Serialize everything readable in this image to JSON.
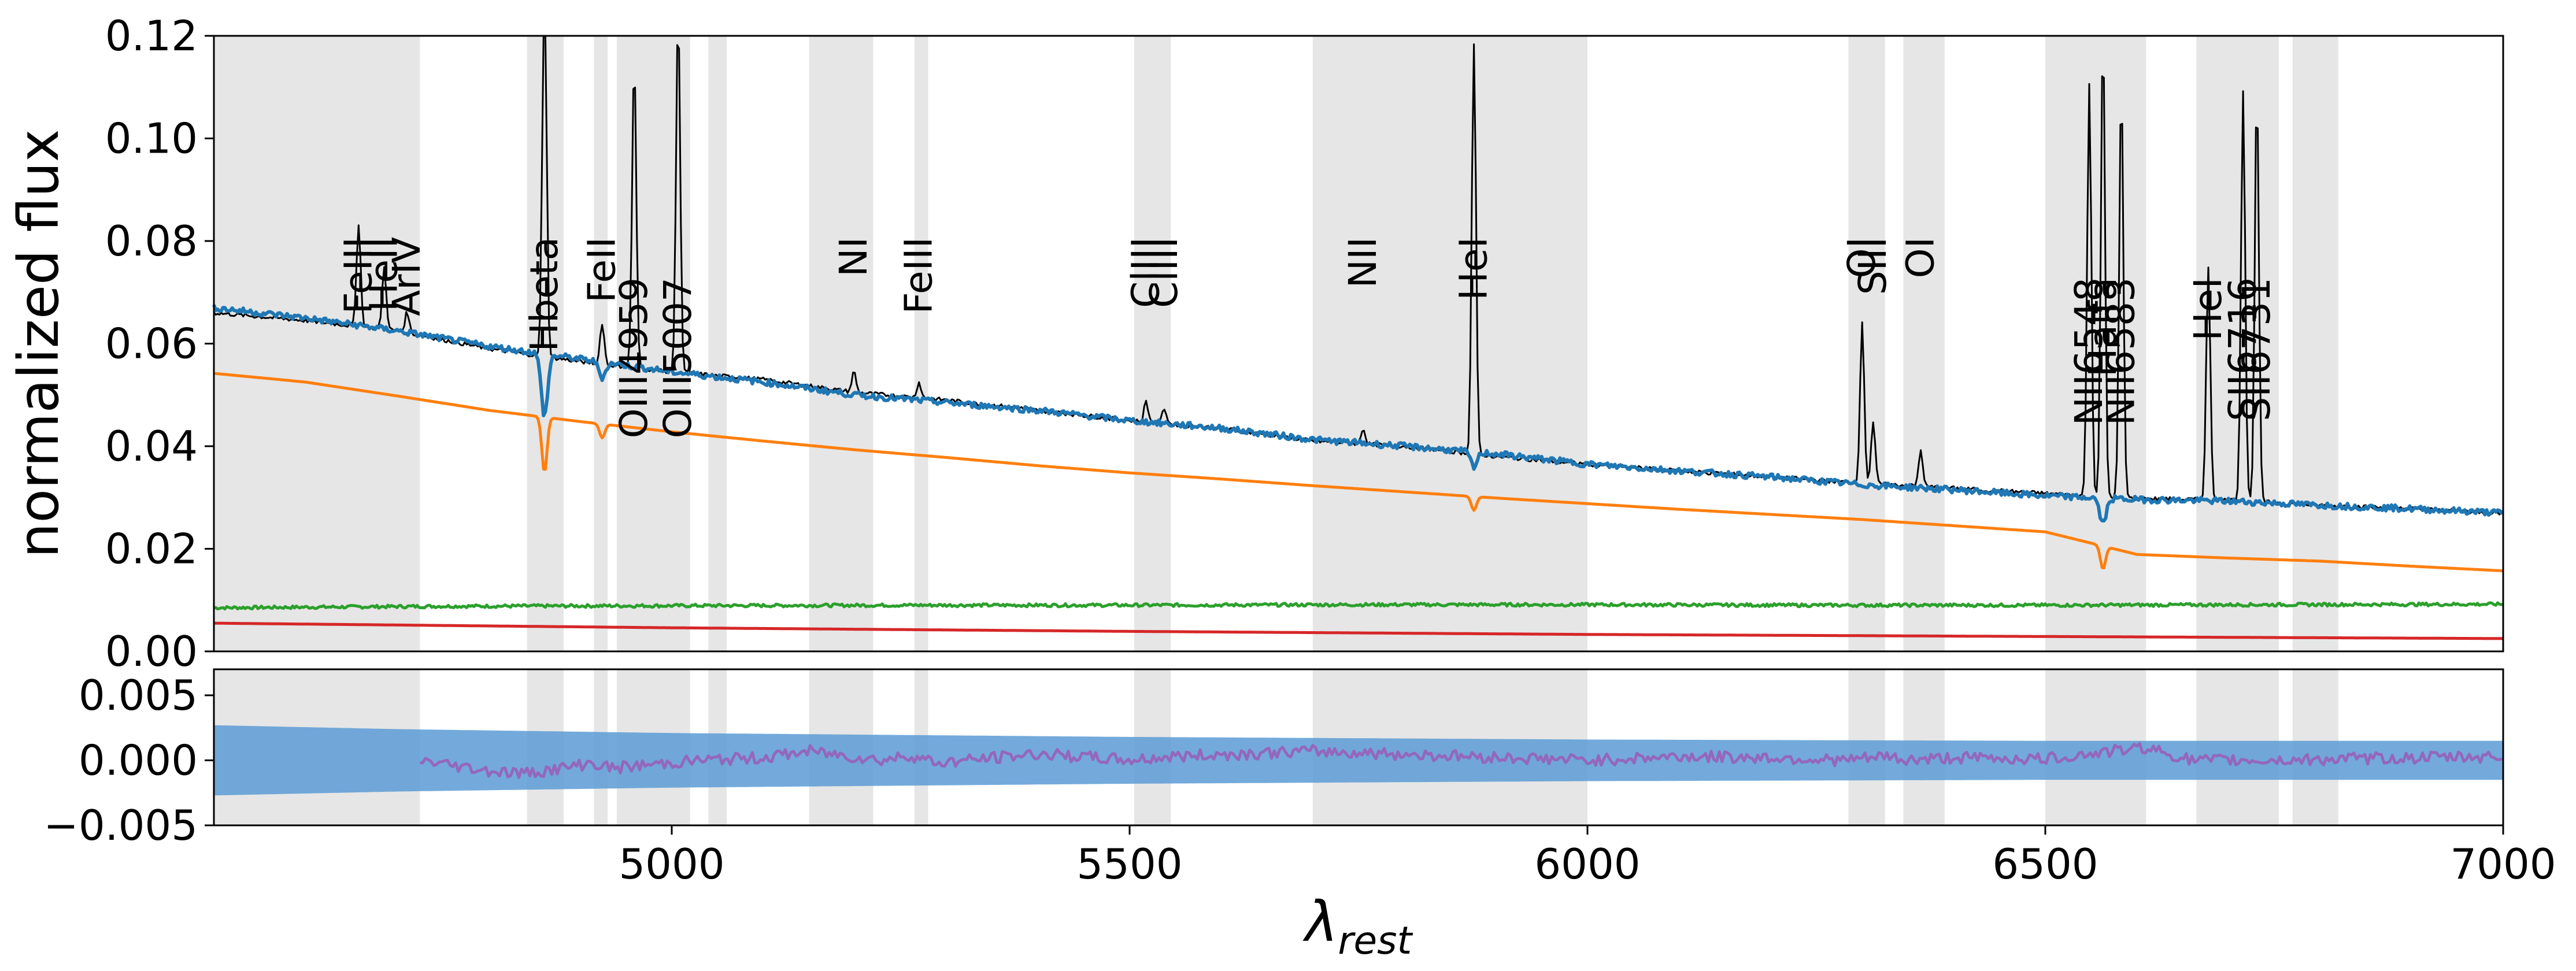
{
  "chart_data": [
    {
      "type": "line",
      "panel": "top",
      "title": "",
      "xlabel": "",
      "ylabel": "normalized flux",
      "xlim": [
        4500,
        7000
      ],
      "ylim": [
        0.0,
        0.12
      ],
      "yticks": [
        "0.00",
        "0.02",
        "0.04",
        "0.06",
        "0.08",
        "0.10",
        "0.12"
      ],
      "grid": false,
      "masked_regions": [
        [
          4500,
          4725
        ],
        [
          4842,
          4882
        ],
        [
          4915,
          4930
        ],
        [
          4940,
          5020
        ],
        [
          5040,
          5060
        ],
        [
          5150,
          5220
        ],
        [
          5265,
          5280
        ],
        [
          5505,
          5545
        ],
        [
          5700,
          6000
        ],
        [
          6285,
          6325
        ],
        [
          6345,
          6390
        ],
        [
          6500,
          6610
        ],
        [
          6665,
          6755
        ],
        [
          6770,
          6820
        ]
      ],
      "emission_lines": [
        {
          "label": "FeIII",
          "x": 4658
        },
        {
          "label": "HeII",
          "x": 4686
        },
        {
          "label": "ArIV",
          "x": 4711
        },
        {
          "label": "Hbeta",
          "x": 4861
        },
        {
          "label": "FeII",
          "x": 4924
        },
        {
          "label": "OIII4959",
          "x": 4959
        },
        {
          "label": "OIII5007",
          "x": 5007
        },
        {
          "label": "NI",
          "x": 5199
        },
        {
          "label": "FeIII",
          "x": 5270
        },
        {
          "label": "ClIII",
          "x": 5518
        },
        {
          "label": "ClIII",
          "x": 5538
        },
        {
          "label": "NII",
          "x": 5755
        },
        {
          "label": "HeI",
          "x": 5876
        },
        {
          "label": "OI",
          "x": 6300
        },
        {
          "label": "SIII",
          "x": 6312
        },
        {
          "label": "OI",
          "x": 6364
        },
        {
          "label": "NII6548",
          "x": 6548
        },
        {
          "label": "Halfa",
          "x": 6563
        },
        {
          "label": "NII6583",
          "x": 6583
        },
        {
          "label": "HeI",
          "x": 6678
        },
        {
          "label": "SII6716",
          "x": 6716
        },
        {
          "label": "SII6731",
          "x": 6731
        }
      ],
      "series": [
        {
          "role": "observed spectrum",
          "color": "#000000",
          "x": [
            4500,
            4600,
            4700,
            4800,
            4900,
            5000,
            5100,
            5200,
            5300,
            5400,
            5500,
            5600,
            5700,
            5800,
            5900,
            6000,
            6100,
            6200,
            6300,
            6400,
            6500,
            6600,
            6700,
            6800,
            6900,
            7000
          ],
          "values": [
            0.066,
            0.0645,
            0.0625,
            0.059,
            0.0565,
            0.0545,
            0.053,
            0.0505,
            0.049,
            0.047,
            0.045,
            0.0435,
            0.041,
            0.04,
            0.038,
            0.0365,
            0.0352,
            0.034,
            0.0328,
            0.0318,
            0.0308,
            0.0298,
            0.0295,
            0.0285,
            0.0278,
            0.027
          ]
        },
        {
          "role": "total model",
          "color": "#1f77b4",
          "x": [
            4500,
            4600,
            4700,
            4800,
            4900,
            5000,
            5100,
            5200,
            5300,
            5400,
            5500,
            5600,
            5700,
            5800,
            5900,
            6000,
            6100,
            6200,
            6300,
            6400,
            6500,
            6600,
            6700,
            6800,
            6900,
            7000
          ],
          "values": [
            0.067,
            0.065,
            0.0625,
            0.0595,
            0.057,
            0.0545,
            0.0525,
            0.05,
            0.0485,
            0.047,
            0.045,
            0.0435,
            0.0413,
            0.04,
            0.0385,
            0.0365,
            0.0352,
            0.034,
            0.0325,
            0.0315,
            0.0303,
            0.0296,
            0.0293,
            0.0285,
            0.0278,
            0.027
          ]
        },
        {
          "role": "component 1",
          "color": "#ff7f0e",
          "x": [
            4500,
            4600,
            4700,
            4800,
            4900,
            5000,
            5100,
            5200,
            5300,
            5400,
            5500,
            5600,
            5700,
            5800,
            5900,
            6000,
            6100,
            6200,
            6300,
            6400,
            6500,
            6600,
            6700,
            6800,
            6900,
            7000
          ],
          "values": [
            0.0542,
            0.0525,
            0.0498,
            0.047,
            0.0448,
            0.0428,
            0.041,
            0.0393,
            0.0378,
            0.0362,
            0.0348,
            0.0336,
            0.0323,
            0.0311,
            0.0299,
            0.0288,
            0.0277,
            0.0267,
            0.0257,
            0.0245,
            0.0233,
            0.0189,
            0.0182,
            0.0176,
            0.0166,
            0.0157
          ]
        },
        {
          "role": "component 2",
          "color": "#2ca02c",
          "x": [
            4500,
            4750,
            5000,
            5250,
            5500,
            5750,
            6000,
            6250,
            6500,
            6750,
            7000
          ],
          "values": [
            0.0085,
            0.0088,
            0.0089,
            0.009,
            0.009,
            0.0091,
            0.0091,
            0.009,
            0.009,
            0.0091,
            0.0092
          ]
        },
        {
          "role": "component 3",
          "color": "#d62728",
          "x": [
            4500,
            5000,
            5500,
            6000,
            6500,
            7000
          ],
          "values": [
            0.0055,
            0.0046,
            0.0039,
            0.0033,
            0.0029,
            0.0025
          ]
        }
      ]
    },
    {
      "type": "line",
      "panel": "bottom",
      "title": "",
      "xlabel": "λrest",
      "ylabel": "",
      "xlim": [
        4500,
        7000
      ],
      "ylim": [
        -0.005,
        0.007
      ],
      "yticks": [
        "−0.005",
        "0.000",
        "0.005"
      ],
      "xticks": [
        "5000",
        "5500",
        "6000",
        "6500",
        "7000"
      ],
      "grid": false,
      "uncertainty_band": {
        "color": "#5b9bd5",
        "x": [
          4500,
          4700,
          5000,
          5500,
          6000,
          6500,
          7000
        ],
        "upper": [
          0.0027,
          0.0024,
          0.0021,
          0.0018,
          0.0016,
          0.0015,
          0.0015
        ],
        "lower": [
          -0.0027,
          -0.0024,
          -0.0021,
          -0.0018,
          -0.0016,
          -0.0015,
          -0.0015
        ]
      },
      "series": [
        {
          "role": "residual",
          "color": "#9467bd",
          "x": [
            4725,
            4800,
            4840,
            4890,
            4910,
            4935,
            5030,
            5100,
            5150,
            5230,
            5260,
            5290,
            5400,
            5500,
            5550,
            5700,
            6000,
            6100,
            6200,
            6280,
            6330,
            6345,
            6400,
            6500,
            6610,
            6660,
            6760,
            6820,
            7000
          ],
          "values": [
            0.0,
            -0.0008,
            -0.001,
            -0.0005,
            -0.0002,
            -0.0006,
            0.0,
            0.0002,
            0.0007,
            0.0,
            0.0004,
            -0.0002,
            0.0005,
            0.0,
            0.0003,
            0.0007,
            0.0,
            0.0003,
            0.0002,
            0.0,
            0.0003,
            0.0,
            0.0002,
            0.0001,
            0.001,
            0.0,
            0.0,
            0.0001,
            0.0003
          ]
        }
      ]
    }
  ]
}
